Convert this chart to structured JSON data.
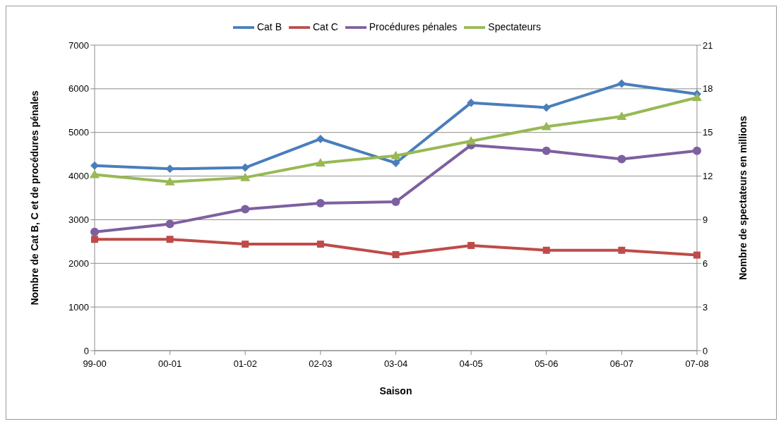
{
  "chart_data": {
    "type": "line",
    "xlabel": "Saison",
    "ylabel": "Nombre de Cat B, C et de procédures pénales",
    "y2label": "Nombre de spectateurs en millions",
    "categories": [
      "99-00",
      "00-01",
      "01-02",
      "02-03",
      "03-04",
      "04-05",
      "05-06",
      "06-07",
      "07-08"
    ],
    "series": [
      {
        "name": "Cat B",
        "color": "#4a7ebb",
        "marker": "diamond",
        "values": [
          4240,
          4165,
          4195,
          4850,
          4300,
          5680,
          5570,
          6120,
          5880
        ]
      },
      {
        "name": "Cat C",
        "color": "#be4b48",
        "marker": "square",
        "values": [
          2550,
          2550,
          2440,
          2440,
          2200,
          2410,
          2300,
          2300,
          2190
        ]
      },
      {
        "name": "Procédures pénales",
        "color": "#7d60a0",
        "marker": "circle",
        "values": [
          2720,
          2900,
          3240,
          3380,
          3410,
          4710,
          4580,
          4390,
          4580
        ]
      },
      {
        "name": "Spectateurs",
        "color": "#98b954",
        "marker": "triangle",
        "axis": "y2",
        "values": [
          12.1,
          11.6,
          11.9,
          12.9,
          13.4,
          14.4,
          15.4,
          16.1,
          17.4
        ]
      }
    ],
    "ylim": [
      0,
      7000
    ],
    "yticks": [
      0,
      1000,
      2000,
      3000,
      4000,
      5000,
      6000,
      7000
    ],
    "y2lim": [
      0,
      21
    ],
    "y2ticks": [
      0,
      3,
      6,
      9,
      12,
      15,
      18,
      21
    ],
    "grid": "y",
    "legend": "top",
    "line_style": "solid"
  }
}
